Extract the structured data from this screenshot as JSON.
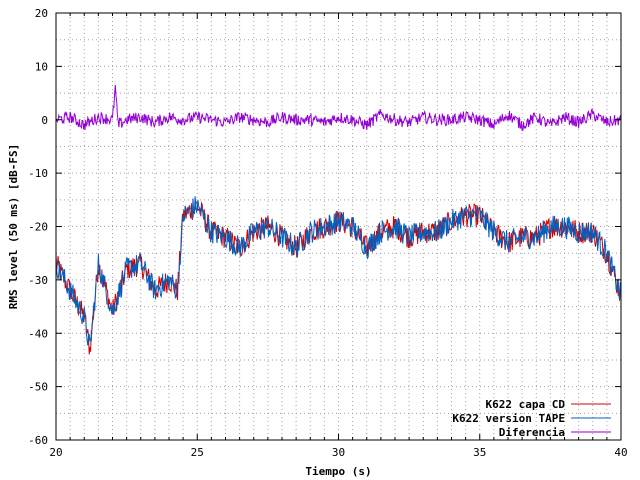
{
  "chart_data": {
    "type": "line",
    "xlabel": "Tiempo (s)",
    "ylabel": "RMS level (50 ms) [dB-FS]",
    "xlim": [
      20,
      40
    ],
    "ylim": [
      -60,
      20
    ],
    "x_ticks": [
      20,
      25,
      30,
      35,
      40
    ],
    "y_ticks": [
      -60,
      -50,
      -40,
      -30,
      -20,
      -10,
      0,
      10,
      20
    ],
    "x_minor_step": 0.5,
    "y_grid_step": 5,
    "grid": true,
    "legend_position": "bottom-right",
    "series": [
      {
        "name": "K622 capa CD",
        "color": "#d00000",
        "x": [
          20,
          20.5,
          21,
          21.2,
          21.5,
          22,
          22.5,
          23,
          23.5,
          24,
          24.3,
          24.5,
          25,
          25.5,
          26,
          26.5,
          27,
          27.5,
          28,
          28.5,
          29,
          29.5,
          30,
          30.5,
          31,
          31.5,
          32,
          32.5,
          33,
          33.5,
          34,
          34.5,
          35,
          35.5,
          36,
          36.5,
          37,
          37.5,
          38,
          38.5,
          39,
          39.5,
          40
        ],
        "values": [
          -27,
          -32,
          -37,
          -43,
          -27,
          -36,
          -28,
          -27,
          -32,
          -30,
          -32,
          -18,
          -16,
          -21,
          -22,
          -24,
          -21,
          -20,
          -22,
          -24,
          -21,
          -20,
          -19,
          -20,
          -24,
          -21,
          -20,
          -22,
          -21,
          -21,
          -19,
          -18,
          -18,
          -21,
          -23,
          -22,
          -22,
          -20,
          -20,
          -21,
          -21,
          -25,
          -33
        ]
      },
      {
        "name": "K622 version TAPE",
        "color": "#0060c0",
        "x": [
          20,
          20.5,
          21,
          21.2,
          21.5,
          22,
          22.5,
          23,
          23.5,
          24,
          24.3,
          24.5,
          25,
          25.5,
          26,
          26.5,
          27,
          27.5,
          28,
          28.5,
          29,
          29.5,
          30,
          30.5,
          31,
          31.5,
          32,
          32.5,
          33,
          33.5,
          34,
          34.5,
          35,
          35.5,
          36,
          36.5,
          37,
          37.5,
          38,
          38.5,
          39,
          39.5,
          40
        ],
        "values": [
          -27,
          -32,
          -37,
          -43,
          -27,
          -36,
          -28,
          -27,
          -32,
          -30,
          -32,
          -18,
          -16,
          -21,
          -22,
          -24,
          -21,
          -20,
          -22,
          -24,
          -21,
          -20,
          -19,
          -20,
          -24,
          -21,
          -20,
          -22,
          -21,
          -21,
          -19,
          -18,
          -18,
          -21,
          -23,
          -22,
          -22,
          -20,
          -20,
          -21,
          -21,
          -25,
          -33
        ]
      },
      {
        "name": "Diferencia",
        "color": "#9400d3",
        "x": [
          20,
          20.5,
          21,
          21.5,
          22,
          22.1,
          22.2,
          22.5,
          23,
          23.5,
          24,
          24.5,
          25,
          25.5,
          26,
          26.5,
          27,
          27.5,
          28,
          28.5,
          29,
          29.5,
          30,
          30.5,
          31,
          31.5,
          32,
          32.5,
          33,
          33.5,
          34,
          34.5,
          35,
          35.5,
          36,
          36.5,
          37,
          37.5,
          38,
          38.5,
          39,
          39.5,
          40
        ],
        "values": [
          0,
          0.5,
          -1,
          0.5,
          0,
          6,
          -1,
          0,
          0.5,
          -0.5,
          0.5,
          0,
          0.5,
          0,
          -0.5,
          0.5,
          0,
          -0.5,
          0.5,
          0,
          0,
          -0.5,
          0.5,
          0,
          -1,
          1,
          0,
          -0.5,
          0.5,
          0,
          0,
          0.5,
          0,
          -1,
          1,
          -1,
          0.5,
          -1,
          0.5,
          -0.5,
          1,
          -0.5,
          0
        ]
      }
    ]
  }
}
